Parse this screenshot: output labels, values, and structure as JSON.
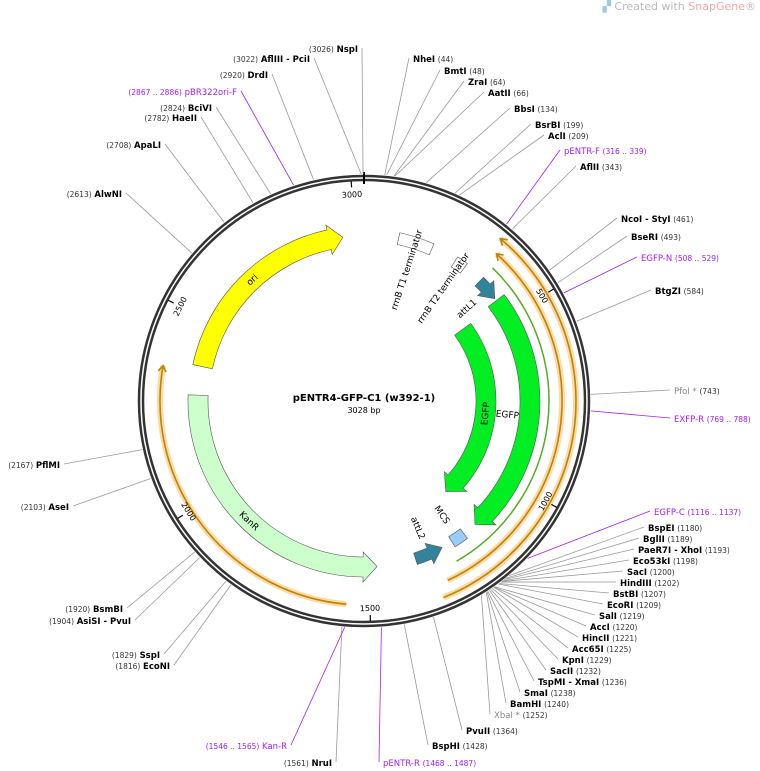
{
  "brand": {
    "prefix": "Created with ",
    "name": "SnapGene",
    "mark": "®"
  },
  "plasmid": {
    "name": "pENTR4-GFP-C1 (w392-1)",
    "length_label": "3028 bp",
    "length": 3028
  },
  "ticks": [
    {
      "pos": 500,
      "label": "500"
    },
    {
      "pos": 1000,
      "label": "1000"
    },
    {
      "pos": 1500,
      "label": "1500"
    },
    {
      "pos": 2000,
      "label": "2000"
    },
    {
      "pos": 2500,
      "label": "2500"
    },
    {
      "pos": 3000,
      "label": "3000"
    }
  ],
  "colors": {
    "backbone": "#333333",
    "ori": "#ffff00",
    "kanr": "#ccffcc",
    "egfp": "#00ee22",
    "att": "#31849b",
    "mcs": "#99ccff",
    "primer": "#a020f0",
    "orange": "#ff9900",
    "enzyme": "#000000",
    "dim": "#888888"
  },
  "features": [
    {
      "name": "ori",
      "start": 2372,
      "end": 2966,
      "dir": 1,
      "type": "ori"
    },
    {
      "name": "KanR",
      "start": 1476,
      "end": 2288,
      "dir": -1,
      "type": "kanr"
    },
    {
      "name": "EGFP",
      "start": 454,
      "end": 1160,
      "dir": 1,
      "type": "egfp_inner"
    },
    {
      "name": "EGFP",
      "start": 444,
      "end": 1161,
      "dir": 1,
      "type": "egfp_outer"
    },
    {
      "name": "attL1",
      "start": 370,
      "end": 437,
      "dir": 1,
      "type": "att"
    },
    {
      "name": "attL2",
      "start": 1278,
      "end": 1362,
      "dir": -1,
      "type": "att"
    },
    {
      "name": "MCS",
      "start": 1203,
      "end": 1245,
      "dir": 0,
      "type": "mcs"
    },
    {
      "name": "rrnB T1 terminator",
      "start": 101,
      "end": 202,
      "dir": 0,
      "type": "term"
    },
    {
      "name": "rrnB T2 terminator",
      "start": 278,
      "end": 311,
      "dir": 0,
      "type": "term"
    }
  ],
  "sites": [
    {
      "name": "NheI",
      "pos": "(44)",
      "bp": 44
    },
    {
      "name": "BmtI",
      "pos": "(48)",
      "bp": 48
    },
    {
      "name": "ZraI",
      "pos": "(64)",
      "bp": 64
    },
    {
      "name": "AatII",
      "pos": "(66)",
      "bp": 66
    },
    {
      "name": "BbsI",
      "pos": "(134)",
      "bp": 134
    },
    {
      "name": "BsrBI",
      "pos": "(199)",
      "bp": 199
    },
    {
      "name": "AclI",
      "pos": "(209)",
      "bp": 209
    },
    {
      "name": "pENTR-F",
      "pos": "(316 .. 339)",
      "bp": 327,
      "kind": "primer"
    },
    {
      "name": "AflII",
      "pos": "(343)",
      "bp": 343
    },
    {
      "name": "NcoI  - StyI",
      "pos": "(461)",
      "bp": 461
    },
    {
      "name": "BseRI",
      "pos": "(493)",
      "bp": 493
    },
    {
      "name": "EGFP-N",
      "pos": "(508 .. 529)",
      "bp": 518,
      "kind": "primer"
    },
    {
      "name": "BtgZI",
      "pos": "(584)",
      "bp": 584
    },
    {
      "name": "PfoI *",
      "pos": "(743)",
      "bp": 743,
      "kind": "dim"
    },
    {
      "name": "EXFP-R",
      "pos": "(769 .. 788)",
      "bp": 778,
      "kind": "primer"
    },
    {
      "name": "EGFP-C",
      "pos": "(1116 .. 1137)",
      "bp": 1126,
      "kind": "primer"
    },
    {
      "name": "BspEI",
      "pos": "(1180)",
      "bp": 1180
    },
    {
      "name": "BglII",
      "pos": "(1189)",
      "bp": 1189
    },
    {
      "name": "PaeR7I  - XhoI",
      "pos": "(1193)",
      "bp": 1193
    },
    {
      "name": "Eco53kI",
      "pos": "(1198)",
      "bp": 1198
    },
    {
      "name": "SacI",
      "pos": "(1200)",
      "bp": 1200
    },
    {
      "name": "HindIII",
      "pos": "(1202)",
      "bp": 1202
    },
    {
      "name": "BstBI",
      "pos": "(1207)",
      "bp": 1207
    },
    {
      "name": "EcoRI",
      "pos": "(1209)",
      "bp": 1209
    },
    {
      "name": "SalI",
      "pos": "(1219)",
      "bp": 1219
    },
    {
      "name": "AccI",
      "pos": "(1220)",
      "bp": 1220
    },
    {
      "name": "HincII",
      "pos": "(1221)",
      "bp": 1221
    },
    {
      "name": "Acc65I",
      "pos": "(1225)",
      "bp": 1225
    },
    {
      "name": "KpnI",
      "pos": "(1229)",
      "bp": 1229
    },
    {
      "name": "SacII",
      "pos": "(1232)",
      "bp": 1232
    },
    {
      "name": "TspMI  - XmaI",
      "pos": "(1236)",
      "bp": 1236
    },
    {
      "name": "SmaI",
      "pos": "(1238)",
      "bp": 1238
    },
    {
      "name": "BamHI",
      "pos": "(1240)",
      "bp": 1240
    },
    {
      "name": "XbaI *",
      "pos": "(1252)",
      "bp": 1252,
      "kind": "dim"
    },
    {
      "name": "PvuII",
      "pos": "(1364)",
      "bp": 1364
    },
    {
      "name": "BspHI",
      "pos": "(1428)",
      "bp": 1428
    },
    {
      "name": "pENTR-R",
      "pos": "(1468 .. 1487)",
      "bp": 1477,
      "kind": "primer"
    },
    {
      "name": "NruI",
      "pos": "(1561)",
      "bp": 1561
    },
    {
      "name": "Kan-R",
      "pos": "(1546 .. 1565)",
      "bp": 1555,
      "kind": "primer"
    },
    {
      "name": "EcoNI",
      "pos": "(1816)",
      "bp": 1816
    },
    {
      "name": "SspI",
      "pos": "(1829)",
      "bp": 1829
    },
    {
      "name": "AsiSI  - PvuI",
      "pos": "(1904)",
      "bp": 1904
    },
    {
      "name": "BsmBI",
      "pos": "(1920)",
      "bp": 1920
    },
    {
      "name": "AseI",
      "pos": "(2103)",
      "bp": 2103
    },
    {
      "name": "PflMI",
      "pos": "(2167)",
      "bp": 2167
    },
    {
      "name": "AlwNI",
      "pos": "(2613)",
      "bp": 2613
    },
    {
      "name": "ApaLI",
      "pos": "(2708)",
      "bp": 2708
    },
    {
      "name": "HaeII",
      "pos": "(2782)",
      "bp": 2782
    },
    {
      "name": "BciVI",
      "pos": "(2824)",
      "bp": 2824
    },
    {
      "name": "pBR322ori-F",
      "pos": "(2867 .. 2886)",
      "bp": 2876,
      "kind": "primer"
    },
    {
      "name": "DrdI",
      "pos": "(2920)",
      "bp": 2920
    },
    {
      "name": "AflIII  - PciI",
      "pos": "(3022)",
      "bp": 3022
    },
    {
      "name": "NspI",
      "pos": "(3026)",
      "bp": 3026
    }
  ]
}
